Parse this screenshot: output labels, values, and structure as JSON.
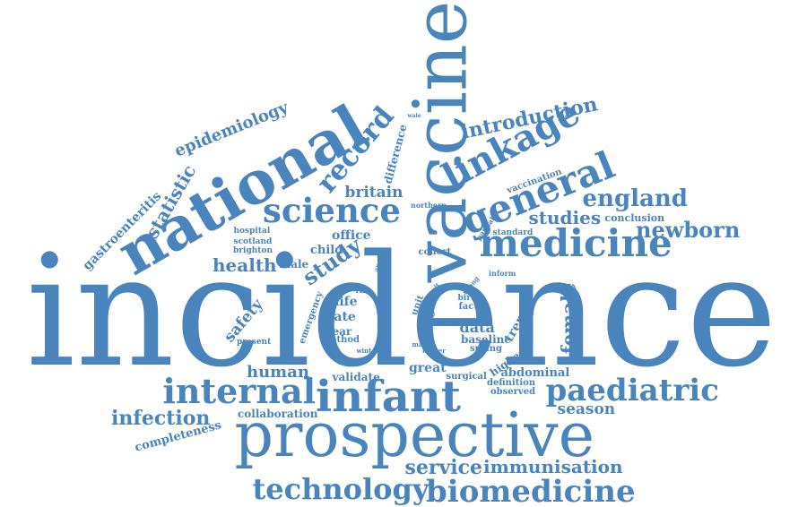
{
  "color": "#4a84bc",
  "words": [
    {
      "text": "incidence",
      "big": true
    },
    {
      "text": "vaccine",
      "big": true
    },
    {
      "text": "prospective",
      "big": true
    },
    {
      "text": "national"
    },
    {
      "text": "medicine"
    },
    {
      "text": "infant"
    },
    {
      "text": "internal"
    },
    {
      "text": "paediatric"
    },
    {
      "text": "science"
    },
    {
      "text": "general"
    },
    {
      "text": "linkage"
    },
    {
      "text": "record"
    },
    {
      "text": "biomedicine"
    },
    {
      "text": "technology"
    },
    {
      "text": "england"
    },
    {
      "text": "newborn"
    },
    {
      "text": "introduction"
    },
    {
      "text": "epidemiology"
    },
    {
      "text": "statistic"
    },
    {
      "text": "study"
    },
    {
      "text": "female"
    },
    {
      "text": "infection"
    },
    {
      "text": "service"
    },
    {
      "text": "immunisation"
    },
    {
      "text": "studies"
    },
    {
      "text": "health"
    },
    {
      "text": "britain"
    },
    {
      "text": "season"
    },
    {
      "text": "gastroenteritis"
    },
    {
      "text": "difference"
    },
    {
      "text": "human"
    },
    {
      "text": "safety"
    },
    {
      "text": "completeness"
    },
    {
      "text": "collaboration"
    },
    {
      "text": "great"
    },
    {
      "text": "validate"
    },
    {
      "text": "office"
    },
    {
      "text": "data"
    },
    {
      "text": "trend"
    },
    {
      "text": "highest"
    },
    {
      "text": "abdominal"
    },
    {
      "text": "male"
    },
    {
      "text": "child"
    },
    {
      "text": "life"
    },
    {
      "text": "rate"
    },
    {
      "text": "year"
    },
    {
      "text": "method"
    },
    {
      "text": "case"
    },
    {
      "text": "unit"
    },
    {
      "text": "cohort"
    },
    {
      "text": "conclusion"
    },
    {
      "text": "vaccination"
    },
    {
      "text": "emergency"
    },
    {
      "text": "observed"
    },
    {
      "text": "definition"
    },
    {
      "text": "hospital"
    },
    {
      "text": "scotland"
    },
    {
      "text": "brighton"
    },
    {
      "text": "present"
    },
    {
      "text": "baseline"
    },
    {
      "text": "spring"
    },
    {
      "text": "surgical"
    },
    {
      "text": "standard"
    },
    {
      "text": "northern"
    },
    {
      "text": "partial"
    },
    {
      "text": "birth"
    },
    {
      "text": "factor"
    },
    {
      "text": "higher"
    },
    {
      "text": "march"
    },
    {
      "text": "winter"
    },
    {
      "text": "result"
    },
    {
      "text": "young"
    },
    {
      "text": "risk"
    },
    {
      "text": "inform"
    },
    {
      "text": "annual"
    },
    {
      "text": "wale"
    }
  ]
}
